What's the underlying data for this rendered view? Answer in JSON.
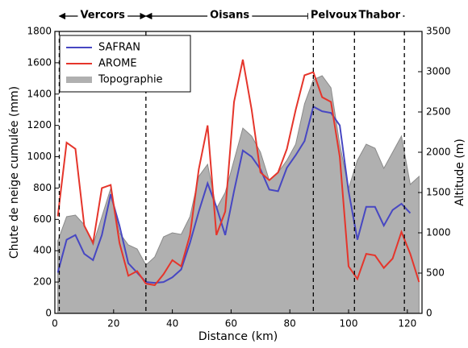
{
  "chart_data": {
    "type": "line",
    "xlabel": "Distance (km)",
    "ylabel": "Chute de neige cumulée (mm)",
    "y2label": "Altitude (m)",
    "x": [
      1,
      4,
      7,
      10,
      13,
      16,
      19,
      22,
      25,
      28,
      31,
      34,
      37,
      40,
      43,
      46,
      49,
      52,
      55,
      58,
      61,
      64,
      67,
      70,
      73,
      76,
      79,
      82,
      85,
      88,
      91,
      94,
      97,
      100,
      103,
      106,
      109,
      112,
      115,
      118,
      121,
      124
    ],
    "series": [
      {
        "name": "SAFRAN",
        "color": "#4747c2",
        "values": [
          260,
          470,
          500,
          380,
          340,
          500,
          760,
          560,
          320,
          260,
          200,
          195,
          200,
          230,
          280,
          450,
          650,
          830,
          680,
          500,
          780,
          1040,
          1000,
          920,
          790,
          780,
          930,
          1010,
          1100,
          1320,
          1290,
          1280,
          1200,
          780,
          470,
          680,
          680,
          560,
          660,
          700,
          640,
          null
        ]
      },
      {
        "name": "AROME",
        "color": "#e5352b",
        "values": [
          620,
          1090,
          1050,
          560,
          450,
          800,
          820,
          450,
          240,
          270,
          190,
          180,
          250,
          340,
          300,
          500,
          920,
          1200,
          500,
          650,
          1350,
          1620,
          1300,
          900,
          850,
          900,
          1050,
          1300,
          1520,
          1540,
          1380,
          1350,
          1000,
          300,
          220,
          380,
          370,
          290,
          350,
          520,
          380,
          200
        ]
      },
      {
        "name": "Topographie",
        "color": "#b0b0b0",
        "axis": "y2",
        "kind": "area",
        "values": [
          900,
          1200,
          1220,
          1100,
          850,
          1200,
          1550,
          1000,
          850,
          800,
          600,
          700,
          950,
          1000,
          980,
          1200,
          1700,
          1850,
          1300,
          1500,
          1900,
          2300,
          2200,
          2000,
          1650,
          1750,
          1900,
          2100,
          2600,
          2900,
          2950,
          2800,
          2100,
          1550,
          1900,
          2100,
          2050,
          1800,
          2000,
          2200,
          1600,
          1700
        ]
      }
    ],
    "regions": [
      {
        "name": "Vercors",
        "start": 1.5,
        "end": 31
      },
      {
        "name": "Oisans",
        "start": 31,
        "end": 88
      },
      {
        "name": "Pelvoux",
        "start": 88,
        "end": 102
      },
      {
        "name": "Thabor",
        "start": 102,
        "end": 119
      }
    ],
    "xlim": [
      0,
      125
    ],
    "xticks": [
      0,
      20,
      40,
      60,
      80,
      100,
      120
    ],
    "ylim": [
      0,
      1800
    ],
    "yticks": [
      0,
      200,
      400,
      600,
      800,
      1000,
      1200,
      1400,
      1600,
      1800
    ],
    "y2lim": [
      0,
      3500
    ],
    "y2ticks": [
      0,
      500,
      1000,
      1500,
      2000,
      2500,
      3000,
      3500
    ],
    "legend": "upper left"
  }
}
